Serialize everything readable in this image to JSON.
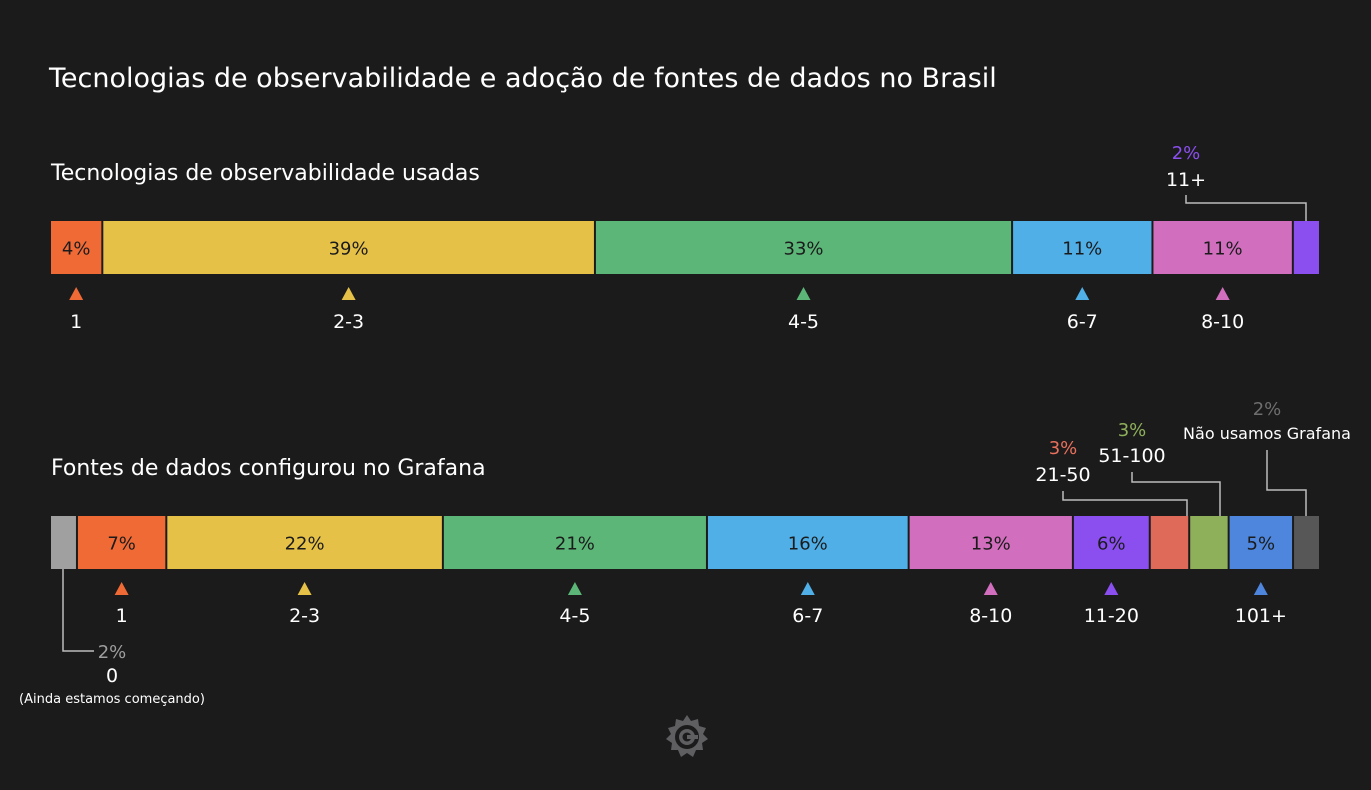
{
  "title": "Tecnologias de observabilidade e adoção de fontes de dados no Brasil",
  "chart_data": [
    {
      "type": "bar",
      "orientation": "horizontal-stacked",
      "title": "Tecnologias de observabilidade usadas",
      "segments": [
        {
          "category": "1",
          "value": 4,
          "label": "4%",
          "color": "#f06a35",
          "text_color": "#1b1b1c"
        },
        {
          "category": "2-3",
          "value": 39,
          "label": "39%",
          "color": "#e6c147",
          "text_color": "#1b1b1c"
        },
        {
          "category": "4-5",
          "value": 33,
          "label": "33%",
          "color": "#5cb677",
          "text_color": "#1b1b1c"
        },
        {
          "category": "6-7",
          "value": 11,
          "label": "11%",
          "color": "#4fafe6",
          "text_color": "#1b1b1c"
        },
        {
          "category": "8-10",
          "value": 11,
          "label": "11%",
          "color": "#d26ebe",
          "text_color": "#1b1b1c"
        },
        {
          "category": "11+",
          "value": 2,
          "label": "2%",
          "color": "#8b4ff0",
          "text_color": "#8b4ff0",
          "callout": true
        }
      ]
    },
    {
      "type": "bar",
      "orientation": "horizontal-stacked",
      "title": "Fontes de dados configurou no Grafana",
      "segments": [
        {
          "category": "0",
          "note": "(Ainda estamos começando)",
          "value": 2,
          "label": "2%",
          "color": "#a0a0a0",
          "text_color": "#9e9e9e",
          "callout": true
        },
        {
          "category": "1",
          "value": 7,
          "label": "7%",
          "color": "#f06a35",
          "text_color": "#1b1b1c"
        },
        {
          "category": "2-3",
          "value": 22,
          "label": "22%",
          "color": "#e6c147",
          "text_color": "#1b1b1c"
        },
        {
          "category": "4-5",
          "value": 21,
          "label": "21%",
          "color": "#5cb677",
          "text_color": "#1b1b1c"
        },
        {
          "category": "6-7",
          "value": 16,
          "label": "16%",
          "color": "#4fafe6",
          "text_color": "#1b1b1c"
        },
        {
          "category": "8-10",
          "value": 13,
          "label": "13%",
          "color": "#d26ebe",
          "text_color": "#1b1b1c"
        },
        {
          "category": "11-20",
          "value": 6,
          "label": "6%",
          "color": "#8b4ff0",
          "text_color": "#1b1b1c"
        },
        {
          "category": "21-50",
          "value": 3,
          "label": "3%",
          "color": "#e06a5a",
          "text_color": "#e8705c",
          "callout": true
        },
        {
          "category": "51-100",
          "value": 3,
          "label": "3%",
          "color": "#8fb05a",
          "text_color": "#8fb05a",
          "callout": true
        },
        {
          "category": "101+",
          "value": 5,
          "label": "5%",
          "color": "#4d86dc",
          "text_color": "#1b1b1c"
        },
        {
          "category": "Não usamos Grafana",
          "value": 2,
          "label": "2%",
          "color": "#575757",
          "text_color": "#6e6e6e",
          "callout": true
        }
      ]
    }
  ],
  "logo": {
    "icon": "grafana-logo-icon",
    "color": "#5f5f62"
  }
}
